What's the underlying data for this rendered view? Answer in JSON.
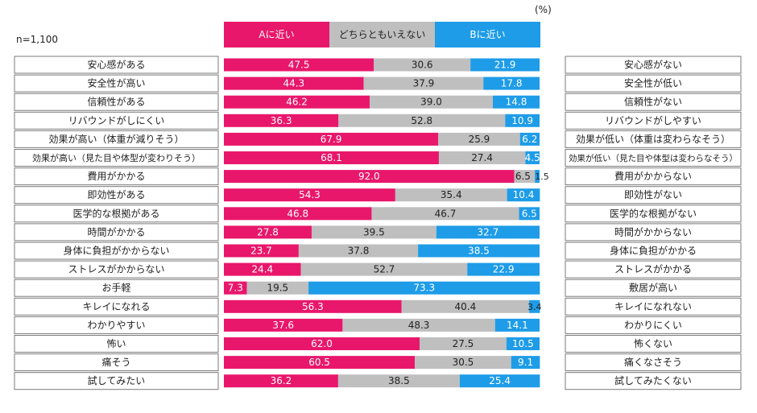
{
  "sample_size": "n=1,100",
  "unit": "(%)",
  "chart_data": {
    "type": "bar",
    "stacked": true,
    "orientation": "horizontal",
    "xlim": [
      0,
      100
    ],
    "legend_position": "top",
    "series": [
      {
        "name": "Aに近い",
        "color": "#e8176b",
        "text_color": "#ffffff",
        "values": [
          47.5,
          44.3,
          46.2,
          36.3,
          67.9,
          68.1,
          92.0,
          54.3,
          46.8,
          27.8,
          23.7,
          24.4,
          7.3,
          56.3,
          37.6,
          62.0,
          60.5,
          36.2
        ]
      },
      {
        "name": "どちらともいえない",
        "color": "#bfbfbf",
        "text_color": "#222222",
        "values": [
          30.6,
          37.9,
          39.0,
          52.8,
          25.9,
          27.4,
          6.5,
          35.4,
          46.7,
          39.5,
          37.8,
          52.7,
          19.5,
          40.4,
          48.3,
          27.5,
          30.5,
          38.5
        ]
      },
      {
        "name": "Bに近い",
        "color": "#1e9ce8",
        "text_color": "#ffffff",
        "values": [
          21.9,
          17.8,
          14.8,
          10.9,
          6.2,
          4.5,
          1.5,
          10.4,
          6.5,
          32.7,
          38.5,
          22.9,
          73.3,
          3.4,
          14.1,
          10.5,
          9.1,
          25.4
        ]
      }
    ],
    "categories_a": [
      "安心感がある",
      "安全性が高い",
      "信頼性がある",
      "リバウンドがしにくい",
      "効果が高い（体重が減りそう）",
      "効果が高い（見た目や体型が変わりそう）",
      "費用がかかる",
      "即効性がある",
      "医学的な根拠がある",
      "時間がかかる",
      "身体に負担がかからない",
      "ストレスがかからない",
      "お手軽",
      "キレイになれる",
      "わかりやすい",
      "怖い",
      "痛そう",
      "試してみたい"
    ],
    "categories_b": [
      "安心感がない",
      "安全性が低い",
      "信頼性がない",
      "リバウンドがしやすい",
      "効果が低い（体重は変わらなそう）",
      "効果が低い（見た目や体型は変わらなそう）",
      "費用がかからない",
      "即効性がない",
      "医学的な根拠がない",
      "時間がかからない",
      "身体に負担がかかる",
      "ストレスがかかる",
      "敷居が高い",
      "キレイになれない",
      "わかりにくい",
      "怖くない",
      "痛くなさそう",
      "試してみたくない"
    ]
  }
}
